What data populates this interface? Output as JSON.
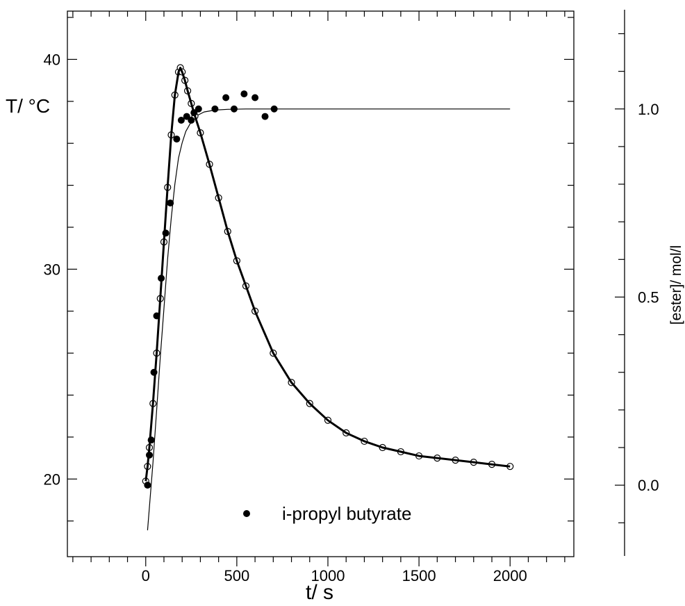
{
  "chart_data": {
    "type": "scatter",
    "xlabel": "t/ s",
    "ylabel_left": "T/ °C",
    "ylabel_right": "[ester]/ mol/l",
    "xlim": [
      -430,
      2350
    ],
    "ylim_left": [
      16.3,
      42.3
    ],
    "ylim_right": [
      -0.19,
      1.26
    ],
    "x_ticks": [
      0,
      500,
      1000,
      1500,
      2000
    ],
    "y_left_ticks": [
      20,
      30,
      40
    ],
    "y_right_ticks": [
      "0.0",
      "0.5",
      "1.0"
    ],
    "legend": {
      "placement": "bottom-center",
      "label": "i-propyl butyrate"
    },
    "series": [
      {
        "name": "i-propyl butyrate",
        "axis": "right",
        "marker": "filled-circle",
        "x": [
          10,
          20,
          30,
          45,
          60,
          85,
          110,
          135,
          170,
          195,
          225,
          250,
          265,
          290,
          380,
          440,
          485,
          540,
          600,
          655,
          705
        ],
        "y": [
          0.0,
          0.08,
          0.12,
          0.3,
          0.45,
          0.55,
          0.67,
          0.75,
          0.92,
          0.97,
          0.98,
          0.97,
          0.99,
          1.0,
          1.0,
          1.03,
          1.0,
          1.04,
          1.03,
          0.98,
          1.0
        ]
      },
      {
        "name": "",
        "axis": "right",
        "marker": "line",
        "x": [
          10,
          20,
          40,
          60,
          80,
          100,
          120,
          140,
          160,
          180,
          200,
          220,
          250,
          280,
          320,
          380,
          450,
          550,
          700,
          900,
          1200,
          1600,
          2000
        ],
        "y": [
          -0.12,
          -0.06,
          0.06,
          0.2,
          0.34,
          0.47,
          0.6,
          0.71,
          0.8,
          0.87,
          0.91,
          0.94,
          0.966,
          0.982,
          0.992,
          0.997,
          0.999,
          1.0,
          1.0,
          1.0,
          1.0,
          1.0,
          1.0
        ]
      },
      {
        "name": "",
        "axis": "left",
        "marker": "open-circle",
        "x": [
          0,
          10,
          20,
          40,
          60,
          80,
          100,
          120,
          140,
          160,
          180,
          190,
          200,
          215,
          230,
          250,
          270,
          300,
          350,
          400,
          450,
          500,
          550,
          600,
          700,
          800,
          900,
          1000,
          1100,
          1200,
          1300,
          1400,
          1500,
          1600,
          1700,
          1800,
          1900,
          2000
        ],
        "y": [
          19.9,
          20.6,
          21.5,
          23.6,
          26.0,
          28.6,
          31.3,
          33.9,
          36.4,
          38.3,
          39.4,
          39.6,
          39.4,
          39.0,
          38.5,
          37.9,
          37.3,
          36.5,
          35.0,
          33.4,
          31.8,
          30.4,
          29.2,
          28.0,
          26.0,
          24.6,
          23.6,
          22.8,
          22.2,
          21.8,
          21.5,
          21.3,
          21.1,
          21.0,
          20.9,
          20.8,
          20.7,
          20.6
        ]
      },
      {
        "name": "",
        "axis": "left",
        "marker": "line",
        "x": [
          0,
          10,
          20,
          40,
          60,
          80,
          100,
          120,
          140,
          160,
          180,
          190,
          200,
          215,
          230,
          250,
          270,
          300,
          350,
          400,
          450,
          500,
          550,
          600,
          700,
          800,
          900,
          1000,
          1100,
          1200,
          1300,
          1400,
          1500,
          1600,
          1700,
          1800,
          1900,
          2000
        ],
        "y": [
          19.9,
          20.6,
          21.5,
          23.6,
          26.0,
          28.6,
          31.3,
          33.9,
          36.4,
          38.3,
          39.4,
          39.6,
          39.4,
          39.0,
          38.5,
          37.9,
          37.3,
          36.5,
          35.0,
          33.4,
          31.8,
          30.4,
          29.2,
          28.0,
          26.0,
          24.6,
          23.6,
          22.8,
          22.2,
          21.8,
          21.5,
          21.3,
          21.1,
          21.0,
          20.9,
          20.8,
          20.7,
          20.6
        ]
      }
    ]
  }
}
